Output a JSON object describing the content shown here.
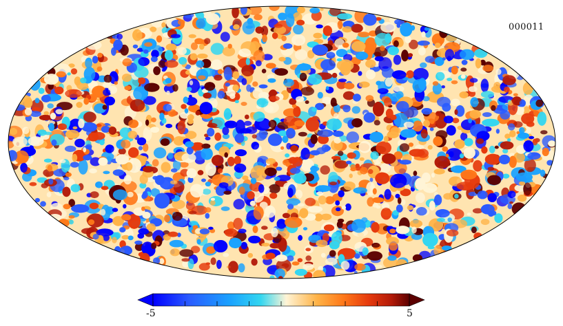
{
  "map": {
    "id_label": "000011",
    "projection": "mollweide",
    "colormap": "planck-cmb"
  },
  "colorbar": {
    "min_label": "-5",
    "max_label": "5",
    "min_value": -5,
    "max_value": 5,
    "tick_count": 9,
    "colors": [
      "#0000ff",
      "#2a5bff",
      "#1aa2ff",
      "#33d6f0",
      "#fff4d6",
      "#ffb347",
      "#ff7a1a",
      "#e63b0d",
      "#b31a08",
      "#5c0000"
    ]
  }
}
